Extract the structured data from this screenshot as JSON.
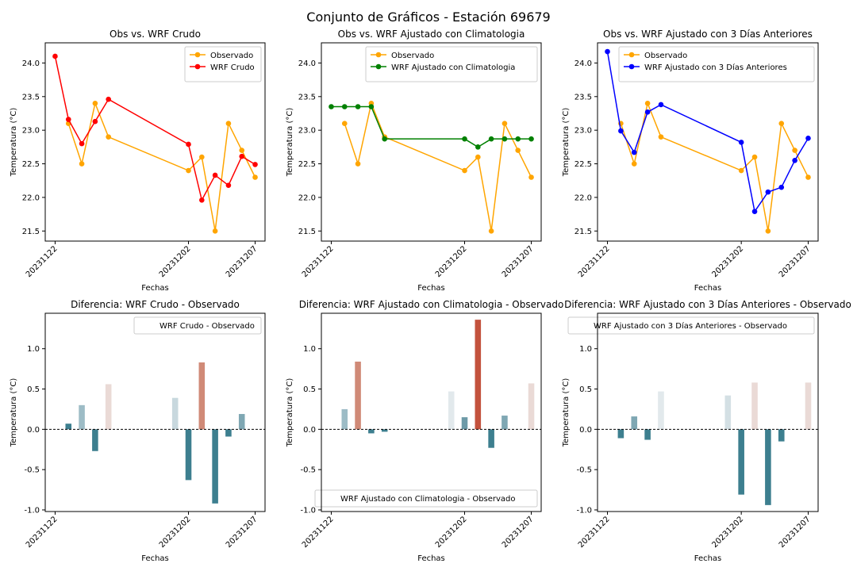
{
  "title": "Conjunto de Gráficos - Estación 69679",
  "chart_data": [
    {
      "type": "line",
      "title": "Obs vs. WRF Crudo",
      "xlabel": "Fechas",
      "ylabel": "Temperatura (°C)",
      "x": [
        "20231122",
        "20231123",
        "20231124",
        "20231125",
        "20231126",
        "20231127",
        "20231128",
        "20231129",
        "20231130",
        "20231201",
        "20231202",
        "20231203",
        "20231204",
        "20231205",
        "20231206",
        "20231207"
      ],
      "xticks": [
        "20231122",
        "20231202",
        "20231207"
      ],
      "ylim": [
        21.35,
        24.3
      ],
      "yticks": [
        "21.5",
        "22.0",
        "22.5",
        "23.0",
        "23.5",
        "24.0"
      ],
      "legend_position": "top-right",
      "series": [
        {
          "name": "Observado",
          "color": "#ffa500",
          "x": [
            "20231123",
            "20231124",
            "20231125",
            "20231126",
            "20231202",
            "20231203",
            "20231204",
            "20231205",
            "20231206",
            "20231207"
          ],
          "values": [
            23.1,
            22.5,
            23.4,
            22.9,
            22.4,
            22.6,
            21.5,
            23.1,
            22.7,
            22.3
          ]
        },
        {
          "name": "WRF Crudo",
          "color": "#ff0000",
          "x": [
            "20231122",
            "20231123",
            "20231124",
            "20231125",
            "20231126",
            "20231202",
            "20231203",
            "20231204",
            "20231205",
            "20231206",
            "20231207"
          ],
          "values": [
            24.1,
            23.16,
            22.8,
            23.13,
            23.46,
            22.79,
            21.96,
            22.33,
            22.18,
            22.61,
            22.49
          ]
        }
      ]
    },
    {
      "type": "line",
      "title": "Obs vs. WRF Ajustado con Climatologia",
      "xlabel": "Fechas",
      "ylabel": "Temperatura (°C)",
      "x": [
        "20231122",
        "20231123",
        "20231124",
        "20231125",
        "20231126",
        "20231127",
        "20231128",
        "20231129",
        "20231130",
        "20231201",
        "20231202",
        "20231203",
        "20231204",
        "20231205",
        "20231206",
        "20231207"
      ],
      "xticks": [
        "20231122",
        "20231202",
        "20231207"
      ],
      "ylim": [
        21.35,
        24.3
      ],
      "yticks": [
        "21.5",
        "22.0",
        "22.5",
        "23.0",
        "23.5",
        "24.0"
      ],
      "legend_position": "top-right",
      "series": [
        {
          "name": "Observado",
          "color": "#ffa500",
          "x": [
            "20231123",
            "20231124",
            "20231125",
            "20231126",
            "20231202",
            "20231203",
            "20231204",
            "20231205",
            "20231206",
            "20231207"
          ],
          "values": [
            23.1,
            22.5,
            23.4,
            22.9,
            22.4,
            22.6,
            21.5,
            23.1,
            22.7,
            22.3
          ]
        },
        {
          "name": "WRF Ajustado con Climatologia",
          "color": "#008000",
          "x": [
            "20231122",
            "20231123",
            "20231124",
            "20231125",
            "20231126",
            "20231202",
            "20231203",
            "20231204",
            "20231205",
            "20231206",
            "20231207"
          ],
          "values": [
            23.35,
            23.35,
            23.35,
            23.35,
            22.87,
            22.87,
            22.75,
            22.87,
            22.87,
            22.87,
            22.87
          ]
        }
      ]
    },
    {
      "type": "line",
      "title": "Obs vs. WRF Ajustado con 3 Días Anteriores",
      "xlabel": "Fechas",
      "ylabel": "Temperatura (°C)",
      "x": [
        "20231122",
        "20231123",
        "20231124",
        "20231125",
        "20231126",
        "20231127",
        "20231128",
        "20231129",
        "20231130",
        "20231201",
        "20231202",
        "20231203",
        "20231204",
        "20231205",
        "20231206",
        "20231207"
      ],
      "xticks": [
        "20231122",
        "20231202",
        "20231207"
      ],
      "ylim": [
        21.35,
        24.3
      ],
      "yticks": [
        "21.5",
        "22.0",
        "22.5",
        "23.0",
        "23.5",
        "24.0"
      ],
      "legend_position": "top-right",
      "series": [
        {
          "name": "Observado",
          "color": "#ffa500",
          "x": [
            "20231123",
            "20231124",
            "20231125",
            "20231126",
            "20231202",
            "20231203",
            "20231204",
            "20231205",
            "20231206",
            "20231207"
          ],
          "values": [
            23.1,
            22.5,
            23.4,
            22.9,
            22.4,
            22.6,
            21.5,
            23.1,
            22.7,
            22.3
          ]
        },
        {
          "name": "WRF Ajustado con 3 Días Anteriores",
          "color": "#0000ff",
          "x": [
            "20231122",
            "20231123",
            "20231124",
            "20231125",
            "20231126",
            "20231202",
            "20231203",
            "20231204",
            "20231205",
            "20231206",
            "20231207"
          ],
          "values": [
            24.17,
            22.99,
            22.67,
            23.27,
            23.38,
            22.82,
            21.79,
            22.08,
            22.15,
            22.55,
            22.88
          ]
        }
      ]
    },
    {
      "type": "bar",
      "title": "Diferencia: WRF Crudo - Observado",
      "xlabel": "Fechas",
      "ylabel": "Temperatura (°C)",
      "x": [
        "20231122",
        "20231123",
        "20231124",
        "20231125",
        "20231126",
        "20231127",
        "20231128",
        "20231129",
        "20231130",
        "20231201",
        "20231202",
        "20231203",
        "20231204",
        "20231205",
        "20231206",
        "20231207"
      ],
      "xticks": [
        "20231122",
        "20231202",
        "20231207"
      ],
      "ylim": [
        -1.02,
        1.44
      ],
      "yticks": [
        "-1.0",
        "-0.5",
        "0.0",
        "0.5",
        "1.0"
      ],
      "legend_position": "top-right",
      "legend": "WRF Crudo - Observado",
      "bars": [
        {
          "x": "20231123",
          "value": 0.07,
          "color": "#3d7f8f"
        },
        {
          "x": "20231124",
          "value": 0.3,
          "color": "#9dbcc6"
        },
        {
          "x": "20231125",
          "value": -0.27,
          "color": "#3d7f8f"
        },
        {
          "x": "20231126",
          "value": 0.56,
          "color": "#eadad6"
        },
        {
          "x": "20231201",
          "value": 0.39,
          "color": "#c8d8de"
        },
        {
          "x": "20231202",
          "value": -0.63,
          "color": "#3d7f8f"
        },
        {
          "x": "20231203",
          "value": 0.83,
          "color": "#d08a77"
        },
        {
          "x": "20231204",
          "value": -0.92,
          "color": "#3d7f8f"
        },
        {
          "x": "20231205",
          "value": -0.09,
          "color": "#3d7f8f"
        },
        {
          "x": "20231206",
          "value": 0.19,
          "color": "#7fa7b3"
        }
      ]
    },
    {
      "type": "bar",
      "title": "Diferencia: WRF Ajustado con Climatologia - Observado",
      "xlabel": "Fechas",
      "ylabel": "Temperatura (°C)",
      "x": [
        "20231122",
        "20231123",
        "20231124",
        "20231125",
        "20231126",
        "20231127",
        "20231128",
        "20231129",
        "20231130",
        "20231201",
        "20231202",
        "20231203",
        "20231204",
        "20231205",
        "20231206",
        "20231207"
      ],
      "xticks": [
        "20231122",
        "20231202",
        "20231207"
      ],
      "ylim": [
        -1.02,
        1.44
      ],
      "yticks": [
        "-1.0",
        "-0.5",
        "0.0",
        "0.5",
        "1.0"
      ],
      "legend_position": "bottom-right",
      "legend": "WRF Ajustado con Climatologia - Observado",
      "bars": [
        {
          "x": "20231123",
          "value": 0.25,
          "color": "#9dbcc6"
        },
        {
          "x": "20231124",
          "value": 0.84,
          "color": "#d08a77"
        },
        {
          "x": "20231125",
          "value": -0.05,
          "color": "#3d7f8f"
        },
        {
          "x": "20231126",
          "value": -0.03,
          "color": "#3d7f8f"
        },
        {
          "x": "20231201",
          "value": 0.47,
          "color": "#e2e9ec"
        },
        {
          "x": "20231202",
          "value": 0.15,
          "color": "#6d9aa7"
        },
        {
          "x": "20231203",
          "value": 1.36,
          "color": "#c3523d"
        },
        {
          "x": "20231204",
          "value": -0.23,
          "color": "#3d7f8f"
        },
        {
          "x": "20231205",
          "value": 0.17,
          "color": "#7fa7b3"
        },
        {
          "x": "20231207",
          "value": 0.57,
          "color": "#eadad6"
        }
      ]
    },
    {
      "type": "bar",
      "title": "Diferencia: WRF Ajustado con 3 Días Anteriores - Observado",
      "xlabel": "Fechas",
      "ylabel": "Temperatura (°C)",
      "x": [
        "20231122",
        "20231123",
        "20231124",
        "20231125",
        "20231126",
        "20231127",
        "20231128",
        "20231129",
        "20231130",
        "20231201",
        "20231202",
        "20231203",
        "20231204",
        "20231205",
        "20231206",
        "20231207"
      ],
      "xticks": [
        "20231122",
        "20231202",
        "20231207"
      ],
      "ylim": [
        -1.02,
        1.44
      ],
      "yticks": [
        "-1.0",
        "-0.5",
        "0.0",
        "0.5",
        "1.0"
      ],
      "legend_position": "top-right",
      "legend": "WRF Ajustado con 3 Días Anteriores - Observado",
      "bars": [
        {
          "x": "20231123",
          "value": -0.11,
          "color": "#3d7f8f"
        },
        {
          "x": "20231124",
          "value": 0.16,
          "color": "#7fa7b3"
        },
        {
          "x": "20231125",
          "value": -0.13,
          "color": "#3d7f8f"
        },
        {
          "x": "20231126",
          "value": 0.47,
          "color": "#e2e9ec"
        },
        {
          "x": "20231201",
          "value": 0.42,
          "color": "#d4e0e4"
        },
        {
          "x": "20231202",
          "value": -0.81,
          "color": "#3d7f8f"
        },
        {
          "x": "20231203",
          "value": 0.58,
          "color": "#eadad6"
        },
        {
          "x": "20231204",
          "value": -0.94,
          "color": "#3d7f8f"
        },
        {
          "x": "20231205",
          "value": -0.15,
          "color": "#3d7f8f"
        },
        {
          "x": "20231207",
          "value": 0.58,
          "color": "#eadad6"
        }
      ]
    }
  ]
}
